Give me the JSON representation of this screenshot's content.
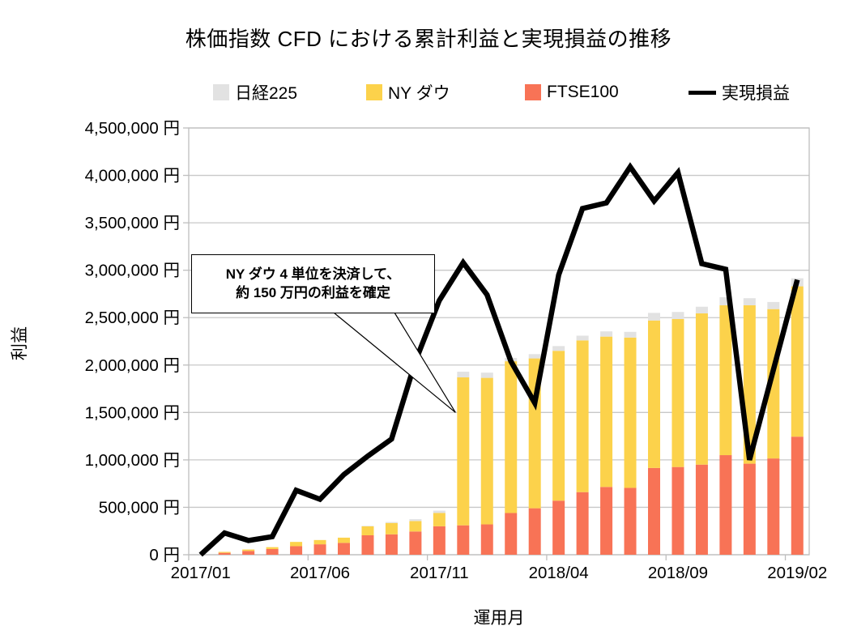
{
  "title": "株価指数 CFD における累計利益と実現損益の推移",
  "chart_data": {
    "type": "bar",
    "subtype": "stacked-bars-with-line-overlay",
    "title": "株価指数 CFD における累計利益と実現損益の推移",
    "xlabel": "運用月",
    "ylabel": "利益",
    "ylim": [
      0,
      4500000
    ],
    "grid": "horizontal",
    "legend_position": "top",
    "x": [
      "2017/01",
      "2017/02",
      "2017/03",
      "2017/04",
      "2017/05",
      "2017/06",
      "2017/07",
      "2017/08",
      "2017/09",
      "2017/10",
      "2017/11",
      "2017/12",
      "2018/01",
      "2018/02",
      "2018/03",
      "2018/04",
      "2018/05",
      "2018/06",
      "2018/07",
      "2018/08",
      "2018/09",
      "2018/10",
      "2018/11",
      "2018/12",
      "2019/01",
      "2019/02"
    ],
    "x_tick_indices": [
      0,
      5,
      10,
      15,
      20,
      25
    ],
    "x_tick_labels_shown": [
      "2017/01",
      "2017/06",
      "2017/11",
      "2018/04",
      "2018/09",
      "2019/02"
    ],
    "y_ticks": [
      {
        "value": 0,
        "label": "0 円"
      },
      {
        "value": 500000,
        "label": "500,000 円"
      },
      {
        "value": 1000000,
        "label": "1,000,000 円"
      },
      {
        "value": 1500000,
        "label": "1,500,000 円"
      },
      {
        "value": 2000000,
        "label": "2,000,000 円"
      },
      {
        "value": 2500000,
        "label": "2,500,000 円"
      },
      {
        "value": 3000000,
        "label": "3,000,000 円"
      },
      {
        "value": 3500000,
        "label": "3,500,000 円"
      },
      {
        "value": 4000000,
        "label": "4,000,000 円"
      },
      {
        "value": 4500000,
        "label": "4,500,000 円"
      }
    ],
    "series": [
      {
        "name": "日経225",
        "type": "bar",
        "color": "#e2e2e2",
        "values": [
          0,
          0,
          0,
          0,
          0,
          0,
          0,
          5000,
          10000,
          20000,
          25000,
          60000,
          55000,
          35000,
          45000,
          50000,
          50000,
          55000,
          60000,
          80000,
          75000,
          70000,
          85000,
          75000,
          75000,
          85000
        ]
      },
      {
        "name": "NY ダウ",
        "type": "bar",
        "color": "#fcd24b",
        "values": [
          0,
          10000,
          15000,
          20000,
          45000,
          45000,
          55000,
          95000,
          120000,
          110000,
          140000,
          1560000,
          1545000,
          1600000,
          1580000,
          1580000,
          1600000,
          1585000,
          1585000,
          1555000,
          1560000,
          1595000,
          1580000,
          1670000,
          1575000,
          1585000
        ]
      },
      {
        "name": "FTSE100",
        "type": "bar",
        "color": "#f87356",
        "values": [
          0,
          20000,
          40000,
          60000,
          90000,
          110000,
          125000,
          205000,
          215000,
          245000,
          300000,
          310000,
          320000,
          440000,
          490000,
          570000,
          660000,
          715000,
          705000,
          915000,
          925000,
          950000,
          1050000,
          960000,
          1015000,
          1245000
        ]
      },
      {
        "name": "実現損益",
        "type": "line",
        "color": "#000000",
        "values": [
          0,
          230000,
          150000,
          190000,
          680000,
          585000,
          845000,
          1040000,
          1220000,
          2040000,
          2680000,
          3080000,
          2740000,
          2040000,
          1600000,
          2950000,
          3650000,
          3710000,
          4090000,
          3730000,
          4030000,
          3070000,
          3010000,
          1000000,
          1950000,
          2900000
        ]
      }
    ],
    "stack_bottom_to_top": [
      2,
      1,
      0
    ],
    "annotation": {
      "line1": "NY ダウ 4 単位を決済して、",
      "line2": "約 150 万円の利益を確定",
      "target_x": "2017/12",
      "target_value": 1500000
    },
    "colors": {
      "gridline": "#c8c8c8",
      "plot_border": "#bebebe",
      "background": "#ffffff"
    }
  }
}
